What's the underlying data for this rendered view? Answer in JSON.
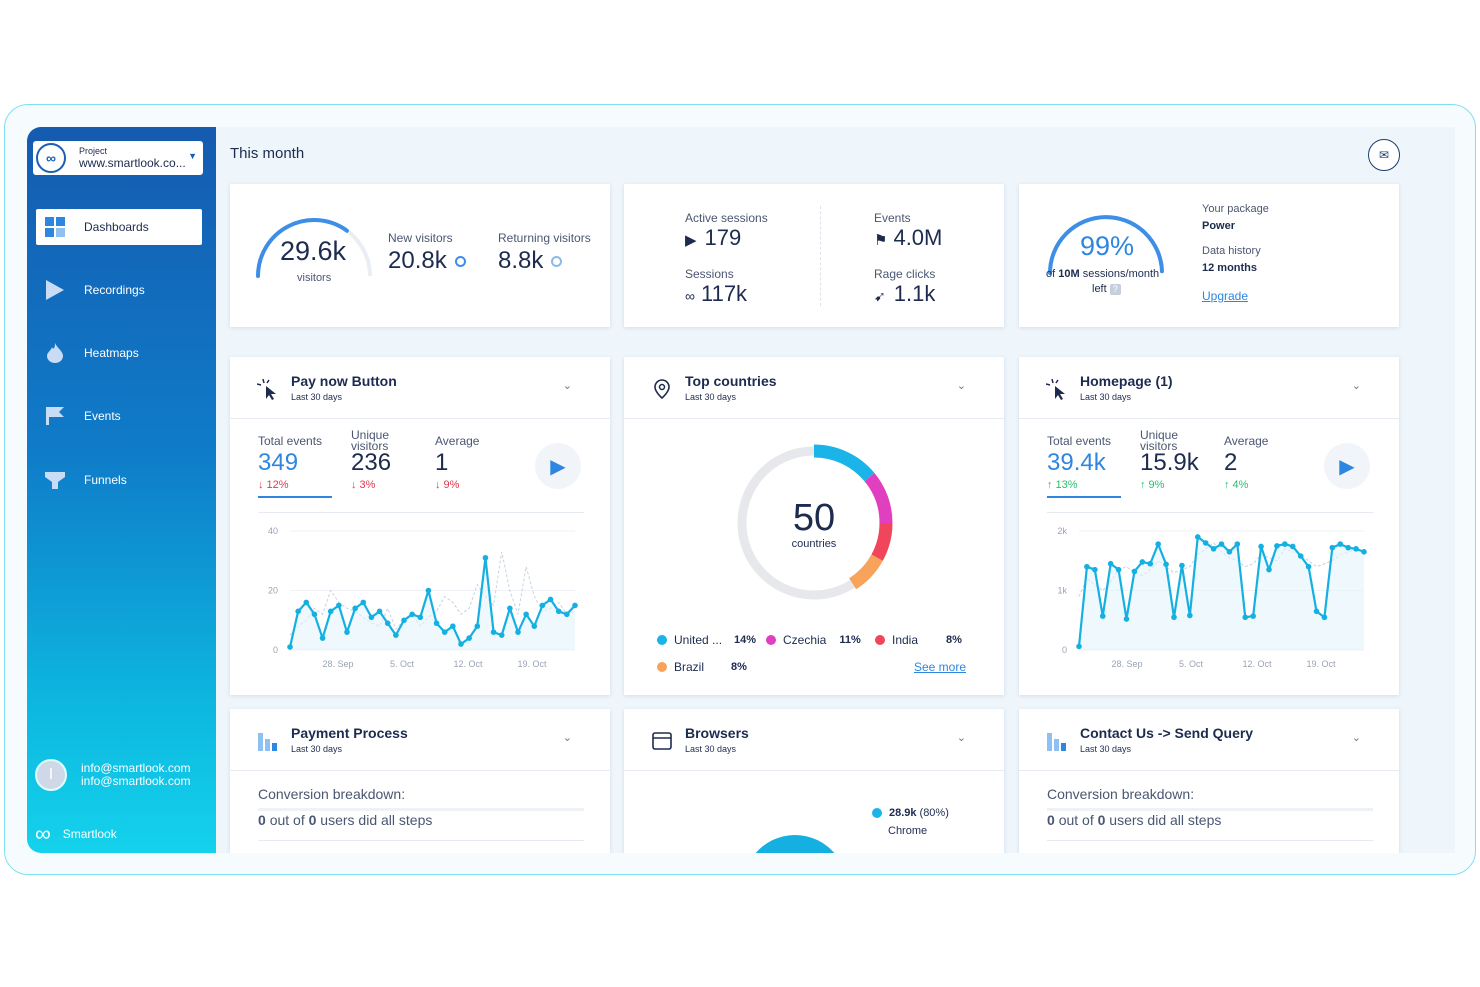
{
  "sidebar": {
    "project_label": "Project",
    "project_value": "www.smartlook.co...",
    "items": [
      {
        "label": "Dashboards",
        "icon": "dashboard-grid-icon"
      },
      {
        "label": "Recordings",
        "icon": "play-icon"
      },
      {
        "label": "Heatmaps",
        "icon": "flame-icon"
      },
      {
        "label": "Events",
        "icon": "flag-icon"
      },
      {
        "label": "Funnels",
        "icon": "funnel-icon"
      }
    ],
    "user_email_1": "info@smartlook.com",
    "user_email_2": "info@smartlook.com",
    "brand": "Smartlook"
  },
  "header": {
    "title": "This month"
  },
  "visitors_card": {
    "total": "29.6k",
    "total_label": "visitors",
    "new_label": "New visitors",
    "new_value": "20.8k",
    "returning_label": "Returning visitors",
    "returning_value": "8.8k"
  },
  "sessions_card": {
    "active_label": "Active sessions",
    "active_value": "179",
    "events_label": "Events",
    "events_value": "4.0M",
    "sessions_label": "Sessions",
    "sessions_value": "117k",
    "rage_label": "Rage clicks",
    "rage_value": "1.1k"
  },
  "package_card": {
    "usage_pct": "99%",
    "usage_fraction": 0.99,
    "usage_of": "of",
    "usage_total": "10M",
    "usage_suffix": "sessions/month",
    "usage_left": "left",
    "package_label": "Your package",
    "package_value": "Power",
    "history_label": "Data history",
    "history_value": "12 months",
    "upgrade": "Upgrade"
  },
  "visitors_gauge_fraction": 0.7,
  "pay_now": {
    "title": "Pay now Button",
    "subtitle": "Last 30 days",
    "total_label": "Total events",
    "total_value": "349",
    "total_delta": "↓ 12%",
    "unique_label_1": "Unique",
    "unique_label_2": "visitors",
    "unique_value": "236",
    "unique_delta": "↓ 3%",
    "average_label": "Average",
    "average_value": "1",
    "average_delta": "↓ 9%"
  },
  "top_countries": {
    "title": "Top countries",
    "subtitle": "Last 30 days",
    "center_value": "50",
    "center_label": "countries",
    "see_more": "See more",
    "legend": [
      {
        "name": "United ...",
        "pct": "14%",
        "color": "#1ab4e8"
      },
      {
        "name": "Czechia",
        "pct": "11%",
        "color": "#e040c0"
      },
      {
        "name": "India",
        "pct": "8%",
        "color": "#f0455a"
      },
      {
        "name": "Brazil",
        "pct": "8%",
        "color": "#f7a35c"
      }
    ]
  },
  "homepage": {
    "title": "Homepage (1)",
    "subtitle": "Last 30 days",
    "total_label": "Total events",
    "total_value": "39.4k",
    "total_delta": "↑ 13%",
    "unique_label_1": "Unique",
    "unique_label_2": "visitors",
    "unique_value": "15.9k",
    "unique_delta": "↑ 9%",
    "average_label": "Average",
    "average_value": "2",
    "average_delta": "↑ 4%"
  },
  "payment_process": {
    "title": "Payment Process",
    "subtitle": "Last 30 days",
    "breakdown": "Conversion breakdown:",
    "zero1": "0",
    "out_of": "out of",
    "zero2": "0",
    "did": "users did all steps"
  },
  "browsers": {
    "title": "Browsers",
    "subtitle": "Last 30 days",
    "top_value": "28.9k",
    "top_pct": "(80%)",
    "top_name": "Chrome"
  },
  "contact_us": {
    "title": "Contact Us -> Send Query",
    "subtitle": "Last 30 days",
    "breakdown": "Conversion breakdown:",
    "zero1": "0",
    "out_of": "out of",
    "zero2": "0",
    "did": "users did all steps"
  },
  "chart_data": [
    {
      "type": "line",
      "name": "pay-now-chart",
      "xlabel": "",
      "ylabel": "",
      "ylim": [
        0,
        40
      ],
      "yticks": [
        "0",
        "20",
        "40"
      ],
      "xticks": [
        "28. Sep",
        "5. Oct",
        "12. Oct",
        "19. Oct"
      ],
      "series": [
        {
          "values": [
            1,
            13,
            16,
            12,
            4,
            13,
            15,
            6,
            14,
            16,
            11,
            13,
            9,
            5,
            10,
            12,
            11,
            20,
            9,
            6,
            8,
            2,
            4,
            8,
            31,
            6,
            5,
            14,
            6,
            12,
            8,
            15,
            17,
            13,
            12,
            15
          ]
        },
        {
          "values": [
            5,
            8,
            10,
            14,
            12,
            20,
            16,
            14,
            13,
            11,
            9,
            8,
            14,
            7,
            10,
            12,
            8,
            11,
            13,
            18,
            16,
            12,
            14,
            22,
            18,
            15,
            33,
            20,
            12,
            28,
            18,
            13,
            14,
            16,
            12,
            13
          ]
        }
      ]
    },
    {
      "type": "pie",
      "name": "top-countries-donut",
      "categories": [
        "United ...",
        "Czechia",
        "India",
        "Brazil",
        "Other"
      ],
      "values": [
        14,
        11,
        8,
        8,
        59
      ]
    },
    {
      "type": "line",
      "name": "homepage-chart",
      "xlabel": "",
      "ylabel": "",
      "ylim": [
        0,
        2000
      ],
      "yticks": [
        "0",
        "1k",
        "2k"
      ],
      "xticks": [
        "28. Sep",
        "5. Oct",
        "12. Oct",
        "19. Oct"
      ],
      "series": [
        {
          "values": [
            60,
            1400,
            1350,
            570,
            1450,
            1350,
            520,
            1320,
            1480,
            1450,
            1780,
            1440,
            550,
            1420,
            580,
            1900,
            1800,
            1700,
            1780,
            1650,
            1780,
            550,
            570,
            1740,
            1350,
            1750,
            1780,
            1740,
            1580,
            1400,
            650,
            550,
            1720,
            1780,
            1720,
            1700,
            1650
          ]
        },
        {
          "values": [
            900,
            1200,
            1100,
            1000,
            1150,
            1350,
            1400,
            1300,
            1250,
            1350,
            1500,
            1400,
            1300,
            1350,
            1400,
            1600,
            1700,
            1800,
            1650,
            1550,
            1500,
            1400,
            1450,
            1600,
            1550,
            1500,
            1700,
            1650,
            1600,
            1500,
            1400,
            1450,
            1500,
            1600,
            1650,
            1700,
            1650
          ]
        }
      ]
    },
    {
      "type": "pie",
      "name": "browsers-pie",
      "categories": [
        "Chrome"
      ],
      "values": [
        80
      ]
    }
  ]
}
